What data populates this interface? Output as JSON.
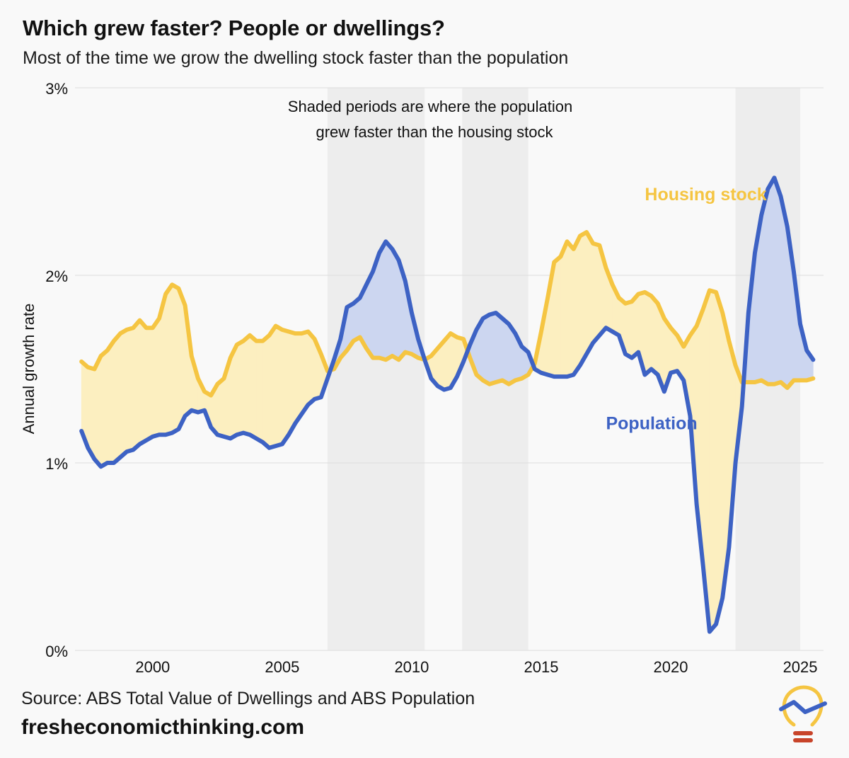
{
  "title": "Which grew faster? People or dwellings?",
  "subtitle": "Most of the time we grow the dwelling stock faster than the population",
  "source": "Source: ABS Total Value of Dwellings and ABS Population",
  "site": "fresheconomicthinking.com",
  "colors": {
    "population": "#3d62c4",
    "housing": "#f5c542",
    "population_fill": "#ccd6f0",
    "housing_fill": "#fcefc0",
    "shade": "#ededed",
    "grid": "#dddddd",
    "logo_bulb": "#f5c542",
    "logo_base": "#c8442a"
  },
  "logo": {
    "icon": "lightbulb-trend-icon"
  },
  "chart_data": {
    "type": "line",
    "title": "Which grew faster? People or dwellings?",
    "subtitle": "Most of the time we grow the dwelling stock faster than the population",
    "ylabel": "Annual growth rate",
    "xlabel": "",
    "xlim": [
      1997.0,
      2025.9
    ],
    "ylim": [
      0,
      3
    ],
    "x_ticks": [
      2000,
      2005,
      2010,
      2015,
      2020,
      2025
    ],
    "y_ticks": [
      0,
      1,
      2,
      3
    ],
    "y_tick_labels": [
      "0%",
      "1%",
      "2%",
      "3%"
    ],
    "grid": "horizontal",
    "annotation": {
      "line1": "Shaded periods are where the population",
      "line2": "grew faster than the housing stock"
    },
    "shaded_periods": [
      [
        2006.75,
        2010.5
      ],
      [
        2011.95,
        2014.5
      ],
      [
        2022.5,
        2025.0
      ]
    ],
    "series": [
      {
        "name": "Housing stock",
        "color": "#f5c542",
        "points": [
          [
            1997.25,
            1.54
          ],
          [
            1997.5,
            1.51
          ],
          [
            1997.75,
            1.5
          ],
          [
            1998.0,
            1.57
          ],
          [
            1998.25,
            1.6
          ],
          [
            1998.5,
            1.65
          ],
          [
            1998.75,
            1.69
          ],
          [
            1999.0,
            1.71
          ],
          [
            1999.25,
            1.72
          ],
          [
            1999.5,
            1.76
          ],
          [
            1999.75,
            1.72
          ],
          [
            2000.0,
            1.72
          ],
          [
            2000.25,
            1.77
          ],
          [
            2000.5,
            1.9
          ],
          [
            2000.75,
            1.95
          ],
          [
            2001.0,
            1.93
          ],
          [
            2001.25,
            1.84
          ],
          [
            2001.5,
            1.57
          ],
          [
            2001.75,
            1.45
          ],
          [
            2002.0,
            1.38
          ],
          [
            2002.25,
            1.36
          ],
          [
            2002.5,
            1.42
          ],
          [
            2002.75,
            1.45
          ],
          [
            2003.0,
            1.56
          ],
          [
            2003.25,
            1.63
          ],
          [
            2003.5,
            1.65
          ],
          [
            2003.75,
            1.68
          ],
          [
            2004.0,
            1.65
          ],
          [
            2004.25,
            1.65
          ],
          [
            2004.5,
            1.68
          ],
          [
            2004.75,
            1.73
          ],
          [
            2005.0,
            1.71
          ],
          [
            2005.25,
            1.7
          ],
          [
            2005.5,
            1.69
          ],
          [
            2005.75,
            1.69
          ],
          [
            2006.0,
            1.7
          ],
          [
            2006.25,
            1.66
          ],
          [
            2006.5,
            1.58
          ],
          [
            2006.75,
            1.49
          ],
          [
            2007.0,
            1.5
          ],
          [
            2007.25,
            1.56
          ],
          [
            2007.5,
            1.6
          ],
          [
            2007.75,
            1.65
          ],
          [
            2008.0,
            1.67
          ],
          [
            2008.25,
            1.61
          ],
          [
            2008.5,
            1.56
          ],
          [
            2008.75,
            1.56
          ],
          [
            2009.0,
            1.55
          ],
          [
            2009.25,
            1.57
          ],
          [
            2009.5,
            1.55
          ],
          [
            2009.75,
            1.59
          ],
          [
            2010.0,
            1.58
          ],
          [
            2010.25,
            1.56
          ],
          [
            2010.5,
            1.55
          ],
          [
            2010.75,
            1.57
          ],
          [
            2011.0,
            1.61
          ],
          [
            2011.25,
            1.65
          ],
          [
            2011.5,
            1.69
          ],
          [
            2011.75,
            1.67
          ],
          [
            2012.0,
            1.66
          ],
          [
            2012.25,
            1.56
          ],
          [
            2012.5,
            1.47
          ],
          [
            2012.75,
            1.44
          ],
          [
            2013.0,
            1.42
          ],
          [
            2013.25,
            1.43
          ],
          [
            2013.5,
            1.44
          ],
          [
            2013.75,
            1.42
          ],
          [
            2014.0,
            1.44
          ],
          [
            2014.25,
            1.45
          ],
          [
            2014.5,
            1.47
          ],
          [
            2014.75,
            1.53
          ],
          [
            2015.0,
            1.7
          ],
          [
            2015.25,
            1.88
          ],
          [
            2015.5,
            2.07
          ],
          [
            2015.75,
            2.1
          ],
          [
            2016.0,
            2.18
          ],
          [
            2016.25,
            2.14
          ],
          [
            2016.5,
            2.21
          ],
          [
            2016.75,
            2.23
          ],
          [
            2017.0,
            2.17
          ],
          [
            2017.25,
            2.16
          ],
          [
            2017.5,
            2.04
          ],
          [
            2017.75,
            1.95
          ],
          [
            2018.0,
            1.88
          ],
          [
            2018.25,
            1.85
          ],
          [
            2018.5,
            1.86
          ],
          [
            2018.75,
            1.9
          ],
          [
            2019.0,
            1.91
          ],
          [
            2019.25,
            1.89
          ],
          [
            2019.5,
            1.85
          ],
          [
            2019.75,
            1.77
          ],
          [
            2020.0,
            1.72
          ],
          [
            2020.25,
            1.68
          ],
          [
            2020.5,
            1.62
          ],
          [
            2020.75,
            1.68
          ],
          [
            2021.0,
            1.73
          ],
          [
            2021.25,
            1.82
          ],
          [
            2021.5,
            1.92
          ],
          [
            2021.75,
            1.91
          ],
          [
            2022.0,
            1.8
          ],
          [
            2022.25,
            1.65
          ],
          [
            2022.5,
            1.52
          ],
          [
            2022.75,
            1.43
          ],
          [
            2023.0,
            1.43
          ],
          [
            2023.25,
            1.43
          ],
          [
            2023.5,
            1.44
          ],
          [
            2023.75,
            1.42
          ],
          [
            2024.0,
            1.42
          ],
          [
            2024.25,
            1.43
          ],
          [
            2024.5,
            1.4
          ],
          [
            2024.75,
            1.44
          ],
          [
            2025.0,
            1.44
          ],
          [
            2025.25,
            1.44
          ],
          [
            2025.5,
            1.45
          ]
        ]
      },
      {
        "name": "Population",
        "color": "#3d62c4",
        "points": [
          [
            1997.25,
            1.17
          ],
          [
            1997.5,
            1.08
          ],
          [
            1997.75,
            1.02
          ],
          [
            1998.0,
            0.98
          ],
          [
            1998.25,
            1.0
          ],
          [
            1998.5,
            1.0
          ],
          [
            1998.75,
            1.03
          ],
          [
            1999.0,
            1.06
          ],
          [
            1999.25,
            1.07
          ],
          [
            1999.5,
            1.1
          ],
          [
            1999.75,
            1.12
          ],
          [
            2000.0,
            1.14
          ],
          [
            2000.25,
            1.15
          ],
          [
            2000.5,
            1.15
          ],
          [
            2000.75,
            1.16
          ],
          [
            2001.0,
            1.18
          ],
          [
            2001.25,
            1.25
          ],
          [
            2001.5,
            1.28
          ],
          [
            2001.75,
            1.27
          ],
          [
            2002.0,
            1.28
          ],
          [
            2002.25,
            1.19
          ],
          [
            2002.5,
            1.15
          ],
          [
            2002.75,
            1.14
          ],
          [
            2003.0,
            1.13
          ],
          [
            2003.25,
            1.15
          ],
          [
            2003.5,
            1.16
          ],
          [
            2003.75,
            1.15
          ],
          [
            2004.0,
            1.13
          ],
          [
            2004.25,
            1.11
          ],
          [
            2004.5,
            1.08
          ],
          [
            2004.75,
            1.09
          ],
          [
            2005.0,
            1.1
          ],
          [
            2005.25,
            1.15
          ],
          [
            2005.5,
            1.21
          ],
          [
            2005.75,
            1.26
          ],
          [
            2006.0,
            1.31
          ],
          [
            2006.25,
            1.34
          ],
          [
            2006.5,
            1.35
          ],
          [
            2006.75,
            1.45
          ],
          [
            2007.0,
            1.55
          ],
          [
            2007.25,
            1.66
          ],
          [
            2007.5,
            1.83
          ],
          [
            2007.75,
            1.85
          ],
          [
            2008.0,
            1.88
          ],
          [
            2008.25,
            1.95
          ],
          [
            2008.5,
            2.02
          ],
          [
            2008.75,
            2.12
          ],
          [
            2009.0,
            2.18
          ],
          [
            2009.25,
            2.14
          ],
          [
            2009.5,
            2.08
          ],
          [
            2009.75,
            1.97
          ],
          [
            2010.0,
            1.8
          ],
          [
            2010.25,
            1.66
          ],
          [
            2010.5,
            1.55
          ],
          [
            2010.75,
            1.45
          ],
          [
            2011.0,
            1.41
          ],
          [
            2011.25,
            1.39
          ],
          [
            2011.5,
            1.4
          ],
          [
            2011.75,
            1.46
          ],
          [
            2012.0,
            1.54
          ],
          [
            2012.25,
            1.63
          ],
          [
            2012.5,
            1.71
          ],
          [
            2012.75,
            1.77
          ],
          [
            2013.0,
            1.79
          ],
          [
            2013.25,
            1.8
          ],
          [
            2013.5,
            1.77
          ],
          [
            2013.75,
            1.74
          ],
          [
            2014.0,
            1.69
          ],
          [
            2014.25,
            1.62
          ],
          [
            2014.5,
            1.59
          ],
          [
            2014.75,
            1.5
          ],
          [
            2015.0,
            1.48
          ],
          [
            2015.25,
            1.47
          ],
          [
            2015.5,
            1.46
          ],
          [
            2015.75,
            1.46
          ],
          [
            2016.0,
            1.46
          ],
          [
            2016.25,
            1.47
          ],
          [
            2016.5,
            1.52
          ],
          [
            2016.75,
            1.58
          ],
          [
            2017.0,
            1.64
          ],
          [
            2017.25,
            1.68
          ],
          [
            2017.5,
            1.72
          ],
          [
            2017.75,
            1.7
          ],
          [
            2018.0,
            1.68
          ],
          [
            2018.25,
            1.58
          ],
          [
            2018.5,
            1.56
          ],
          [
            2018.75,
            1.59
          ],
          [
            2019.0,
            1.47
          ],
          [
            2019.25,
            1.5
          ],
          [
            2019.5,
            1.47
          ],
          [
            2019.75,
            1.38
          ],
          [
            2020.0,
            1.48
          ],
          [
            2020.25,
            1.49
          ],
          [
            2020.5,
            1.44
          ],
          [
            2020.75,
            1.25
          ],
          [
            2021.0,
            0.78
          ],
          [
            2021.25,
            0.45
          ],
          [
            2021.5,
            0.1
          ],
          [
            2021.75,
            0.14
          ],
          [
            2022.0,
            0.28
          ],
          [
            2022.25,
            0.55
          ],
          [
            2022.5,
            1.0
          ],
          [
            2022.75,
            1.3
          ],
          [
            2023.0,
            1.8
          ],
          [
            2023.25,
            2.12
          ],
          [
            2023.5,
            2.32
          ],
          [
            2023.75,
            2.46
          ],
          [
            2024.0,
            2.52
          ],
          [
            2024.25,
            2.42
          ],
          [
            2024.5,
            2.26
          ],
          [
            2024.75,
            2.02
          ],
          [
            2025.0,
            1.74
          ],
          [
            2025.25,
            1.6
          ],
          [
            2025.5,
            1.55
          ]
        ]
      }
    ],
    "series_labels": [
      {
        "series": "Housing stock",
        "text": "Housing stock",
        "x": 2019.0,
        "y": 2.4
      },
      {
        "series": "Population",
        "text": "Population",
        "x": 2017.5,
        "y": 1.18
      }
    ]
  }
}
